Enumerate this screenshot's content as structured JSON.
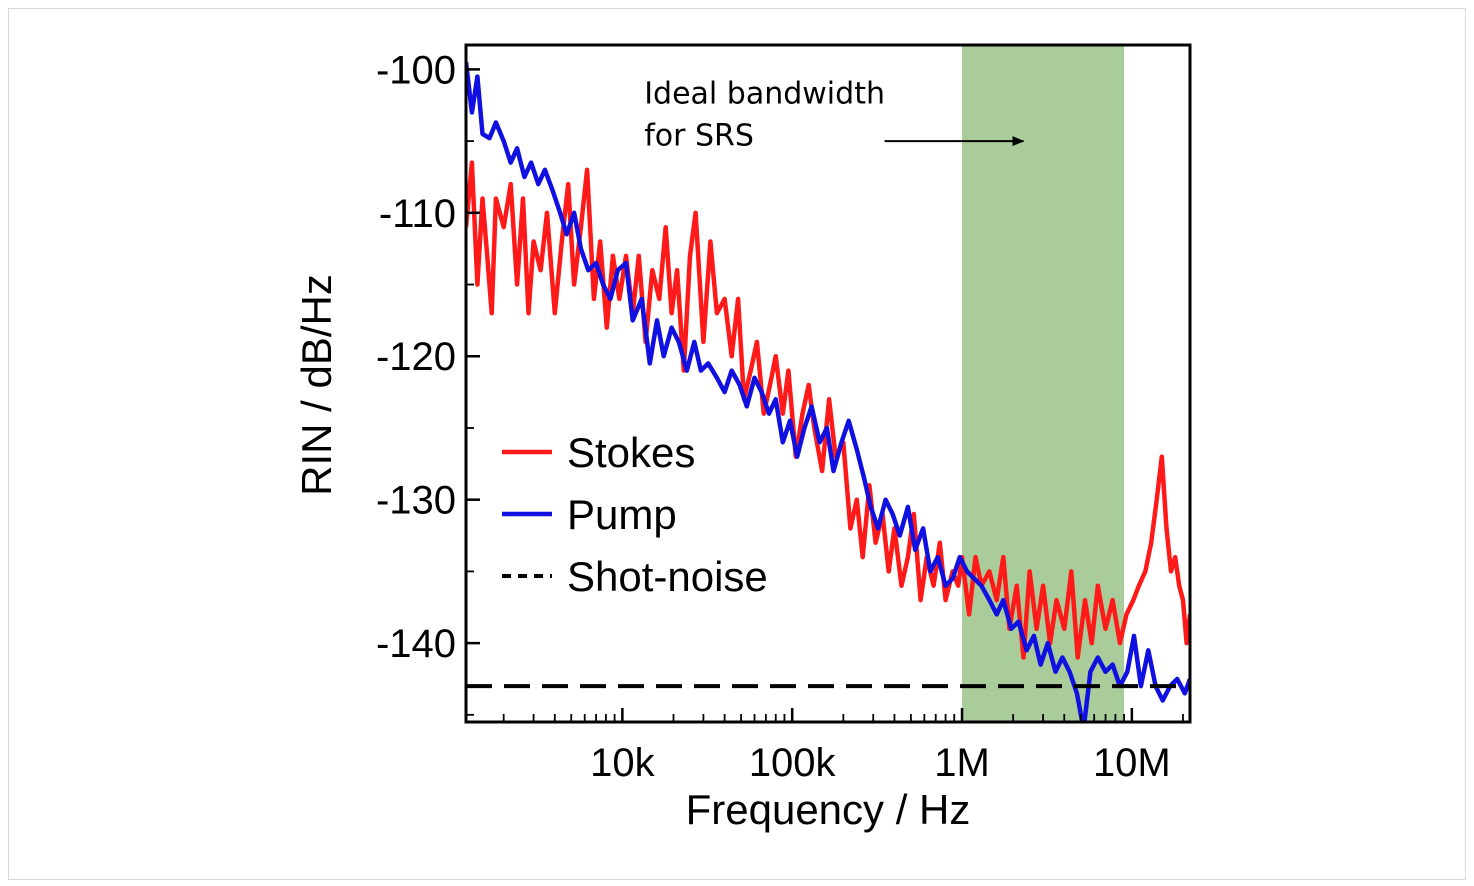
{
  "chart_data": {
    "type": "line",
    "xlabel": "Frequency / Hz",
    "ylabel": "RIN / dB/Hz",
    "x_scale": "log",
    "xlim": [
      1200,
      22000000
    ],
    "ylim": [
      -145.5,
      -98.3
    ],
    "x_ticks": [
      {
        "value": 10000,
        "label": "10k"
      },
      {
        "value": 100000,
        "label": "100k"
      },
      {
        "value": 1000000,
        "label": "1M"
      },
      {
        "value": 10000000,
        "label": "10M"
      }
    ],
    "y_ticks": [
      {
        "value": -100,
        "label": "-100"
      },
      {
        "value": -110,
        "label": "-110"
      },
      {
        "value": -120,
        "label": "-120"
      },
      {
        "value": -130,
        "label": "-130"
      },
      {
        "value": -140,
        "label": "-140"
      }
    ],
    "highlight_band": {
      "x_start": 1000000,
      "x_end": 9000000,
      "color": "#a9cc9a"
    },
    "annotation": {
      "lines": [
        "Ideal bandwidth",
        "for SRS"
      ],
      "x": 100000,
      "y": -103.5,
      "arrow_from_x": 350000,
      "arrow_to_x": 2300000,
      "arrow_y": -105
    },
    "legend": {
      "position": "left-center"
    },
    "series": [
      {
        "name": "Stokes",
        "color": "#ff1a1a",
        "style": "solid",
        "x": [
          1200,
          1300,
          1400,
          1500,
          1600,
          1700,
          1800,
          2000,
          2200,
          2400,
          2600,
          2800,
          3000,
          3300,
          3600,
          4000,
          4400,
          4800,
          5200,
          5700,
          6200,
          6800,
          7400,
          8100,
          8800,
          9600,
          10500,
          11500,
          12500,
          13700,
          15000,
          16500,
          18000,
          19500,
          21000,
          23000,
          25000,
          27000,
          30000,
          33000,
          36000,
          40000,
          44000,
          48000,
          52000,
          57000,
          62000,
          68000,
          74000,
          80000,
          88000,
          95000,
          105000,
          115000,
          125000,
          135000,
          150000,
          165000,
          180000,
          200000,
          220000,
          240000,
          260000,
          285000,
          310000,
          340000,
          370000,
          400000,
          440000,
          480000,
          520000,
          570000,
          620000,
          680000,
          740000,
          800000,
          880000,
          950000,
          1000000,
          1100000,
          1200000,
          1300000,
          1450000,
          1600000,
          1750000,
          1900000,
          2100000,
          2300000,
          2500000,
          2750000,
          3000000,
          3300000,
          3600000,
          4000000,
          4400000,
          4800000,
          5300000,
          5800000,
          6300000,
          7000000,
          7700000,
          8500000,
          9300000,
          10200000,
          11000000,
          12000000,
          13000000,
          14000000,
          15000000,
          16000000,
          17000000,
          18000000,
          19000000,
          20000000,
          21000000,
          22000000
        ],
        "y": [
          -111,
          -106.5,
          -115,
          -109,
          -113,
          -117,
          -109,
          -111,
          -108,
          -115,
          -109,
          -117,
          -112,
          -114,
          -110,
          -117,
          -112,
          -108,
          -115,
          -111,
          -107,
          -116,
          -112,
          -118,
          -113,
          -116,
          -113,
          -117,
          -113,
          -119,
          -114,
          -116,
          -111,
          -117,
          -114,
          -121,
          -113,
          -110,
          -119,
          -112,
          -117,
          -116,
          -120,
          -116,
          -123,
          -121,
          -119,
          -124,
          -122,
          -120,
          -124,
          -121,
          -127,
          -124,
          -122,
          -125,
          -128,
          -123,
          -127,
          -126,
          -132,
          -130,
          -134,
          -129,
          -133,
          -131,
          -135,
          -132,
          -136,
          -134,
          -131,
          -137,
          -134,
          -136,
          -133,
          -137,
          -135,
          -136,
          -134,
          -138,
          -134,
          -136,
          -135,
          -137,
          -134,
          -139,
          -136,
          -141,
          -135,
          -139,
          -136,
          -140,
          -137,
          -139,
          -135,
          -141,
          -137,
          -140,
          -136,
          -139,
          -137,
          -140,
          -138,
          -137,
          -136,
          -135,
          -133,
          -130,
          -127,
          -132,
          -135,
          -134,
          -136,
          -137,
          -140,
          -138
        ]
      },
      {
        "name": "Pump",
        "color": "#1010e0",
        "style": "solid",
        "x": [
          1200,
          1300,
          1400,
          1500,
          1650,
          1800,
          2000,
          2200,
          2400,
          2650,
          2900,
          3200,
          3500,
          3900,
          4300,
          4700,
          5200,
          5700,
          6300,
          7000,
          7700,
          8500,
          9400,
          10500,
          11500,
          13000,
          14500,
          16000,
          17500,
          19500,
          21500,
          24000,
          26500,
          29000,
          32000,
          36000,
          40000,
          44000,
          49000,
          54000,
          60000,
          66000,
          73000,
          80000,
          88000,
          97000,
          107000,
          118000,
          130000,
          145000,
          160000,
          175000,
          195000,
          215000,
          240000,
          265000,
          290000,
          320000,
          355000,
          390000,
          430000,
          480000,
          530000,
          590000,
          650000,
          720000,
          800000,
          880000,
          970000,
          1070000,
          1180000,
          1300000,
          1450000,
          1600000,
          1750000,
          1950000,
          2150000,
          2400000,
          2650000,
          2900000,
          3200000,
          3550000,
          3900000,
          4300000,
          4750000,
          5200000,
          5700000,
          6300000,
          7000000,
          7700000,
          8500000,
          9400000,
          10300000,
          11300000,
          12500000,
          13800000,
          15200000,
          16800000,
          18500000,
          20500000,
          22000000
        ],
        "y": [
          -99.5,
          -103,
          -100.5,
          -104.5,
          -104.8,
          -103.7,
          -105,
          -106.5,
          -105.5,
          -107.5,
          -106.5,
          -108,
          -107,
          -108.5,
          -110,
          -111.5,
          -110,
          -112.5,
          -114,
          -113.5,
          -115,
          -116,
          -114,
          -113.5,
          -117.5,
          -116,
          -120.5,
          -117.5,
          -120,
          -118,
          -119,
          -121,
          -119,
          -121,
          -120.5,
          -121.5,
          -122.5,
          -121,
          -122,
          -123.5,
          -121.5,
          -122.5,
          -124,
          -123,
          -126,
          -124.5,
          -127,
          -125,
          -123.5,
          -126,
          -125,
          -128,
          -126,
          -124.5,
          -126.5,
          -128.5,
          -130.5,
          -132,
          -130,
          -131,
          -132.5,
          -130.5,
          -133.5,
          -132,
          -135,
          -134,
          -136,
          -135.5,
          -134,
          -135,
          -135.5,
          -136,
          -137,
          -138,
          -137,
          -139,
          -138.5,
          -140.5,
          -139.5,
          -141.5,
          -140,
          -142,
          -141,
          -142,
          -143.5,
          -146,
          -142,
          -141,
          -142,
          -141.5,
          -143,
          -142,
          -139.5,
          -143,
          -140.5,
          -143,
          -144,
          -143,
          -142.5,
          -143.5,
          -142.5
        ]
      },
      {
        "name": "Shot-noise",
        "color": "#000000",
        "style": "dashed",
        "x": [
          1200,
          22000000
        ],
        "y": [
          -143,
          -143
        ]
      }
    ]
  }
}
